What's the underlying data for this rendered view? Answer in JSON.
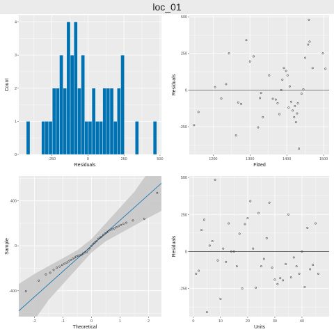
{
  "title": "loc_01",
  "colors": {
    "panel_bg": "#ebebeb",
    "grid": "#ffffff",
    "bar": "#0072b2",
    "line": "#1f77b4",
    "ref": "#555555",
    "point": "#1a1a1a",
    "band": "#c8c8c8"
  },
  "chart_data": [
    {
      "type": "bar",
      "id": "histogram",
      "xlabel": "Residuals",
      "ylabel": "Count",
      "xlim": [
        -480,
        510
      ],
      "ylim": [
        0,
        4.2
      ],
      "xticks": [
        -250,
        0,
        250,
        500
      ],
      "xtick_labels": [
        "-250",
        "0",
        "250",
        "500"
      ],
      "yticks": [
        0,
        1,
        2,
        3,
        4
      ],
      "ytick_labels": [
        "0",
        "1",
        "2",
        "3",
        "4"
      ],
      "bin_width": 25,
      "bins": [
        {
          "x": -415,
          "count": 1
        },
        {
          "x": -310,
          "count": 1
        },
        {
          "x": -285,
          "count": 1
        },
        {
          "x": -260,
          "count": 1
        },
        {
          "x": -235,
          "count": 2
        },
        {
          "x": -210,
          "count": 2
        },
        {
          "x": -185,
          "count": 3
        },
        {
          "x": -160,
          "count": 2
        },
        {
          "x": -135,
          "count": 4
        },
        {
          "x": -110,
          "count": 3
        },
        {
          "x": -85,
          "count": 4
        },
        {
          "x": -60,
          "count": 2
        },
        {
          "x": -35,
          "count": 3
        },
        {
          "x": -10,
          "count": 1
        },
        {
          "x": 15,
          "count": 1
        },
        {
          "x": 40,
          "count": 2
        },
        {
          "x": 65,
          "count": 1
        },
        {
          "x": 90,
          "count": 1
        },
        {
          "x": 115,
          "count": 2
        },
        {
          "x": 140,
          "count": 2
        },
        {
          "x": 165,
          "count": 2
        },
        {
          "x": 190,
          "count": 1
        },
        {
          "x": 215,
          "count": 2
        },
        {
          "x": 240,
          "count": 3
        },
        {
          "x": 340,
          "count": 1
        },
        {
          "x": 465,
          "count": 1
        }
      ]
    },
    {
      "type": "scatter",
      "id": "residuals-vs-fitted",
      "xlabel": "Fitted",
      "ylabel": "Residuals",
      "xlim": [
        1135,
        1515
      ],
      "ylim": [
        -440,
        510
      ],
      "xticks": [
        1200,
        1300,
        1400,
        1500
      ],
      "xtick_labels": [
        "1200",
        "1300",
        "1400",
        "1500"
      ],
      "yticks": [
        -250,
        0,
        250,
        500
      ],
      "ytick_labels": [
        "-250",
        "0",
        "250",
        "500"
      ],
      "hline": 0,
      "points": [
        {
          "x": 1148,
          "y": -240
        },
        {
          "x": 1160,
          "y": -150
        },
        {
          "x": 1205,
          "y": 20
        },
        {
          "x": 1222,
          "y": -58
        },
        {
          "x": 1235,
          "y": 40
        },
        {
          "x": 1243,
          "y": 250
        },
        {
          "x": 1262,
          "y": -310
        },
        {
          "x": 1268,
          "y": -85
        },
        {
          "x": 1276,
          "y": -95
        },
        {
          "x": 1290,
          "y": 340
        },
        {
          "x": 1300,
          "y": 195
        },
        {
          "x": 1310,
          "y": 230
        },
        {
          "x": 1322,
          "y": -255
        },
        {
          "x": 1327,
          "y": -55
        },
        {
          "x": 1330,
          "y": -20
        },
        {
          "x": 1335,
          "y": -185
        },
        {
          "x": 1352,
          "y": 100
        },
        {
          "x": 1362,
          "y": -60
        },
        {
          "x": 1370,
          "y": -65
        },
        {
          "x": 1375,
          "y": -90
        },
        {
          "x": 1380,
          "y": -165
        },
        {
          "x": 1385,
          "y": 0
        },
        {
          "x": 1388,
          "y": 70
        },
        {
          "x": 1392,
          "y": 150
        },
        {
          "x": 1398,
          "y": 130
        },
        {
          "x": 1402,
          "y": 100
        },
        {
          "x": 1405,
          "y": -120
        },
        {
          "x": 1408,
          "y": 25
        },
        {
          "x": 1412,
          "y": -80
        },
        {
          "x": 1416,
          "y": -140
        },
        {
          "x": 1420,
          "y": -185
        },
        {
          "x": 1422,
          "y": -110
        },
        {
          "x": 1425,
          "y": -220
        },
        {
          "x": 1428,
          "y": -160
        },
        {
          "x": 1430,
          "y": -90
        },
        {
          "x": 1433,
          "y": -400
        },
        {
          "x": 1440,
          "y": -25
        },
        {
          "x": 1445,
          "y": 5
        },
        {
          "x": 1450,
          "y": 220
        },
        {
          "x": 1458,
          "y": 310
        },
        {
          "x": 1460,
          "y": 480
        },
        {
          "x": 1462,
          "y": 330
        },
        {
          "x": 1470,
          "y": 150
        },
        {
          "x": 1498,
          "y": 250
        },
        {
          "x": 1505,
          "y": 145
        }
      ]
    },
    {
      "type": "scatter",
      "id": "qq-plot",
      "xlabel": "Theoretical",
      "ylabel": "Sample",
      "xlim": [
        -2.55,
        2.45
      ],
      "ylim": [
        -630,
        620
      ],
      "xticks": [
        -2,
        -1,
        0,
        1,
        2
      ],
      "xtick_labels": [
        "-2",
        "-1",
        "0",
        "1",
        "2"
      ],
      "yticks": [
        -400,
        0,
        400
      ],
      "ytick_labels": [
        "-400",
        "0",
        "400"
      ],
      "fit_line": {
        "intercept": 0,
        "slope": 227
      },
      "band": [
        {
          "x": -2.55,
          "lo": -880,
          "hi": -340
        },
        {
          "x": -2.0,
          "lo": -660,
          "hi": -250
        },
        {
          "x": -1.5,
          "lo": -480,
          "hi": -180
        },
        {
          "x": -1.0,
          "lo": -340,
          "hi": -110
        },
        {
          "x": -0.5,
          "lo": -200,
          "hi": -40
        },
        {
          "x": 0.0,
          "lo": -60,
          "hi": 60
        },
        {
          "x": 0.5,
          "lo": 40,
          "hi": 200
        },
        {
          "x": 1.0,
          "lo": 110,
          "hi": 340
        },
        {
          "x": 1.5,
          "lo": 180,
          "hi": 480
        },
        {
          "x": 2.0,
          "lo": 250,
          "hi": 660
        },
        {
          "x": 2.45,
          "lo": 310,
          "hi": 860
        }
      ],
      "points": [
        {
          "x": -2.3,
          "y": -405
        },
        {
          "x": -1.85,
          "y": -310
        },
        {
          "x": -1.6,
          "y": -255
        },
        {
          "x": -1.45,
          "y": -240
        },
        {
          "x": -1.33,
          "y": -215
        },
        {
          "x": -1.22,
          "y": -195
        },
        {
          "x": -1.12,
          "y": -185
        },
        {
          "x": -1.03,
          "y": -170
        },
        {
          "x": -0.95,
          "y": -160
        },
        {
          "x": -0.87,
          "y": -150
        },
        {
          "x": -0.8,
          "y": -140
        },
        {
          "x": -0.73,
          "y": -125
        },
        {
          "x": -0.66,
          "y": -115
        },
        {
          "x": -0.59,
          "y": -105
        },
        {
          "x": -0.53,
          "y": -95
        },
        {
          "x": -0.47,
          "y": -90
        },
        {
          "x": -0.41,
          "y": -85
        },
        {
          "x": -0.35,
          "y": -80
        },
        {
          "x": -0.29,
          "y": -68
        },
        {
          "x": -0.23,
          "y": -60
        },
        {
          "x": -0.17,
          "y": -55
        },
        {
          "x": -0.11,
          "y": -35
        },
        {
          "x": -0.06,
          "y": -22
        },
        {
          "x": 0.0,
          "y": 0
        },
        {
          "x": 0.06,
          "y": 18
        },
        {
          "x": 0.11,
          "y": 28
        },
        {
          "x": 0.17,
          "y": 40
        },
        {
          "x": 0.23,
          "y": 62
        },
        {
          "x": 0.29,
          "y": 72
        },
        {
          "x": 0.35,
          "y": 80
        },
        {
          "x": 0.41,
          "y": 95
        },
        {
          "x": 0.47,
          "y": 108
        },
        {
          "x": 0.53,
          "y": 118
        },
        {
          "x": 0.59,
          "y": 128
        },
        {
          "x": 0.66,
          "y": 140
        },
        {
          "x": 0.73,
          "y": 148
        },
        {
          "x": 0.8,
          "y": 155
        },
        {
          "x": 0.87,
          "y": 165
        },
        {
          "x": 0.95,
          "y": 175
        },
        {
          "x": 1.03,
          "y": 185
        },
        {
          "x": 1.12,
          "y": 195
        },
        {
          "x": 1.22,
          "y": 205
        },
        {
          "x": 1.45,
          "y": 225
        },
        {
          "x": 1.85,
          "y": 240
        },
        {
          "x": 2.3,
          "y": 470
        }
      ]
    },
    {
      "type": "scatter",
      "id": "residuals-vs-units",
      "xlabel": "Units",
      "ylabel": "Residuals",
      "xlim": [
        -1.5,
        50
      ],
      "ylim": [
        -440,
        510
      ],
      "xticks": [
        0,
        10,
        20,
        30,
        40
      ],
      "xtick_labels": [
        "0",
        "10",
        "20",
        "30",
        "40"
      ],
      "yticks": [
        -250,
        0,
        250,
        500
      ],
      "ytick_labels": [
        "-250",
        "0",
        "250",
        "500"
      ],
      "hline": 0,
      "points": [
        {
          "x": 1,
          "y": -150
        },
        {
          "x": 2,
          "y": -130
        },
        {
          "x": 3,
          "y": 145
        },
        {
          "x": 4,
          "y": 215
        },
        {
          "x": 5,
          "y": -410
        },
        {
          "x": 6,
          "y": 40
        },
        {
          "x": 7,
          "y": 70
        },
        {
          "x": 8,
          "y": 485
        },
        {
          "x": 9,
          "y": -60
        },
        {
          "x": 10,
          "y": -320
        },
        {
          "x": 11,
          "y": 20
        },
        {
          "x": 12,
          "y": -70
        },
        {
          "x": 13,
          "y": 190
        },
        {
          "x": 14,
          "y": 0
        },
        {
          "x": 15,
          "y": 0
        },
        {
          "x": 16,
          "y": -100
        },
        {
          "x": 17,
          "y": 120
        },
        {
          "x": 18,
          "y": -250
        },
        {
          "x": 19,
          "y": 185
        },
        {
          "x": 20,
          "y": 225
        },
        {
          "x": 21,
          "y": 340
        },
        {
          "x": 22,
          "y": 20
        },
        {
          "x": 23,
          "y": -245
        },
        {
          "x": 24,
          "y": 260
        },
        {
          "x": 25,
          "y": -100
        },
        {
          "x": 26,
          "y": -50
        },
        {
          "x": 27,
          "y": 90
        },
        {
          "x": 28,
          "y": 330
        },
        {
          "x": 29,
          "y": -110
        },
        {
          "x": 30,
          "y": -190
        },
        {
          "x": 31,
          "y": -220
        },
        {
          "x": 32,
          "y": -180
        },
        {
          "x": 33,
          "y": -195
        },
        {
          "x": 34,
          "y": -85
        },
        {
          "x": 35,
          "y": 250
        },
        {
          "x": 36,
          "y": -175
        },
        {
          "x": 37,
          "y": -40
        },
        {
          "x": 38,
          "y": -100
        },
        {
          "x": 39,
          "y": -150
        },
        {
          "x": 40,
          "y": 0
        },
        {
          "x": 41,
          "y": -240
        },
        {
          "x": 42,
          "y": 160
        },
        {
          "x": 43,
          "y": -120
        },
        {
          "x": 44,
          "y": -90
        },
        {
          "x": 45,
          "y": 190
        },
        {
          "x": 46,
          "y": -150
        }
      ]
    }
  ]
}
